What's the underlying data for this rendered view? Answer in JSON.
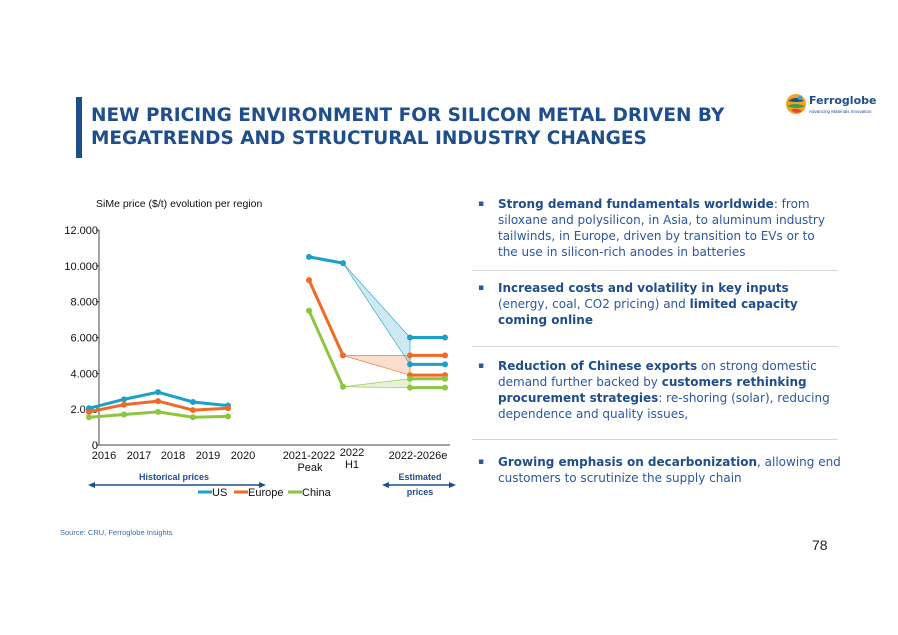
{
  "header": {
    "title_line1": "NEW PRICING ENVIRONMENT FOR SILICON METAL DRIVEN BY",
    "title_line2": "MEGATRENDS AND STRUCTURAL INDUSTRY CHANGES",
    "logo_name": "Ferroglobe",
    "logo_tagline": "Advancing Materials Innovation",
    "accent_color": "#1f4e8c"
  },
  "chart_data": {
    "type": "line",
    "title": "SiMe price ($/t) evolution per region",
    "ylim": [
      0,
      12000
    ],
    "y_ticks": [
      "0",
      "2.000",
      "4.000",
      "6.000",
      "8.000",
      "10.000",
      "12.000"
    ],
    "historical_categories": [
      "2016",
      "2017",
      "2018",
      "2019",
      "2020"
    ],
    "other_labels": {
      "peak": [
        "2021-2022",
        "Peak"
      ],
      "h1": [
        "2022",
        "H1"
      ],
      "estimate": "2022-2026e"
    },
    "series": [
      {
        "name": "US",
        "color": "#1ba1c8",
        "historical": [
          2050,
          2550,
          2950,
          2400,
          2200
        ],
        "peak": 10500,
        "h1": 10150,
        "estimate_high": 6000,
        "estimate_low": 4500
      },
      {
        "name": "Europe",
        "color": "#f06a25",
        "historical": [
          1850,
          2250,
          2450,
          1950,
          2050
        ],
        "peak": 9200,
        "h1": 5000,
        "estimate_high": 5000,
        "estimate_low": 3900
      },
      {
        "name": "China",
        "color": "#8cc63f",
        "historical": [
          1550,
          1700,
          1850,
          1550,
          1600
        ],
        "peak": 7500,
        "h1": 3250,
        "estimate_high": 3700,
        "estimate_low": 3200
      }
    ],
    "caption_historical": "Historical prices",
    "caption_estimated_line1": "Estimated",
    "caption_estimated_line2": "prices",
    "legend_position": "bottom"
  },
  "bullets": [
    {
      "bold": "Strong demand fundamentals worldwide",
      "rest": ": from siloxane and polysilicon, in Asia, to aluminum industry tailwinds, in Europe, driven by transition to EVs or to the use in silicon-rich anodes in batteries"
    },
    {
      "bold": "Increased costs and volatility in key inputs",
      "rest": " (energy, coal, CO2 pricing) and ",
      "bold2": "limited capacity coming online"
    },
    {
      "bold": "Reduction of Chinese exports",
      "rest": " on strong domestic demand further backed by ",
      "bold2": "customers rethinking procurement strategies",
      "rest2": ": re-shoring (solar), reducing dependence and quality issues,"
    },
    {
      "bold": "Growing emphasis on decarbonization",
      "rest": ", allowing end customers to scrutinize the supply chain"
    }
  ],
  "bullet_marker": "▪",
  "footer": {
    "source": "Source: CRU, Ferroglobe Insights",
    "page_number": "78"
  }
}
